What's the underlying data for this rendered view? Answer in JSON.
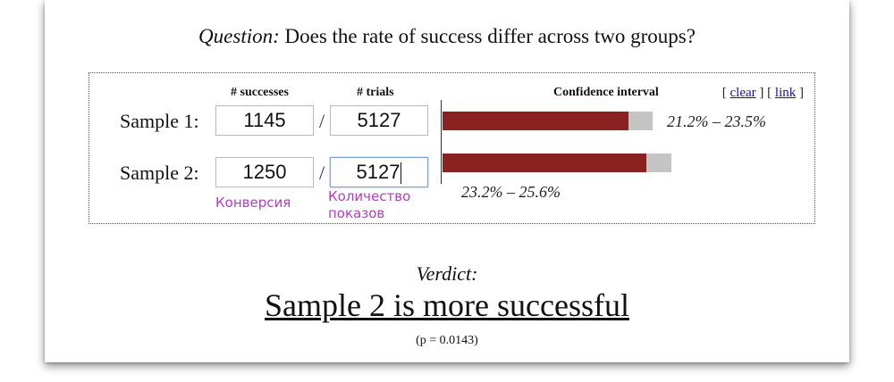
{
  "question": {
    "label": "Question:",
    "text": "Does the rate of success differ across two groups?"
  },
  "headers": {
    "successes": "# successes",
    "trials": "# trials",
    "confidence_interval": "Confidence interval"
  },
  "links": {
    "open1": "[",
    "clear": "clear",
    "mid": "] [",
    "link": "link",
    "close": "]"
  },
  "samples": [
    {
      "label": "Sample 1:",
      "successes": "1145",
      "trials": "5127",
      "ci_text": "21.2% – 23.5%",
      "ci_low": 0.212,
      "ci_high": 0.235,
      "rate": 0.2233
    },
    {
      "label": "Sample 2:",
      "successes": "1250",
      "trials": "5127",
      "ci_text": "23.2% – 25.6%",
      "ci_low": 0.232,
      "ci_high": 0.256,
      "rate": 0.2438
    }
  ],
  "separator": "/",
  "annotations": {
    "successes_note": "Конверсия",
    "trials_note_line1": "Количество",
    "trials_note_line2": "показов"
  },
  "verdict": {
    "label": "Verdict:",
    "text": "Sample 2 is more successful",
    "p_value": "(p = 0.0143)"
  },
  "colors": {
    "bar_fill": "#8b2222",
    "bar_track": "#c4c4c4",
    "annotation": "#b43cc4",
    "link": "#1a0dab"
  }
}
